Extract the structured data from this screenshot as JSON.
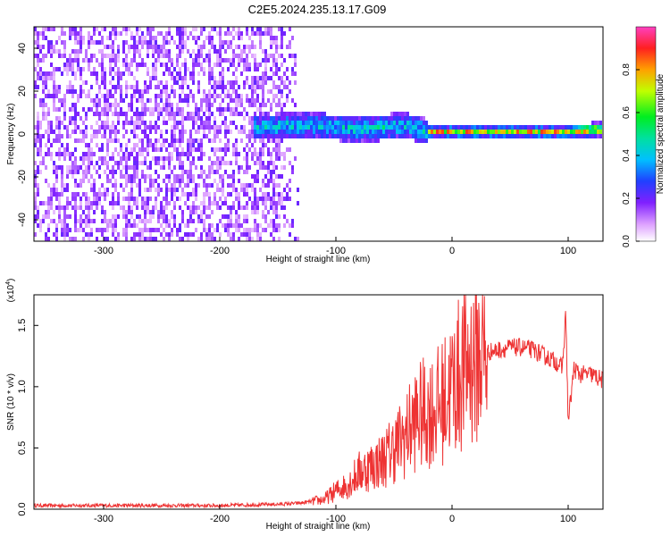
{
  "title": "C2E5.2024.235.13.17.G09",
  "chart_data": [
    {
      "type": "heatmap",
      "title": "C2E5.2024.235.13.17.G09",
      "xlabel": "Height of straight line (km)",
      "ylabel": "Frequency (Hz)",
      "xlim": [
        -360,
        130
      ],
      "ylim": [
        -50,
        50
      ],
      "xticks": [
        -300,
        -200,
        -100,
        0,
        100
      ],
      "yticks": [
        -40,
        -20,
        0,
        20,
        40
      ],
      "colorbar": {
        "label": "Normalized spectral amplitude",
        "range": [
          0.0,
          1.0
        ],
        "ticks": [
          0.0,
          0.2,
          0.4,
          0.6,
          0.8
        ]
      },
      "noise_region_x": [
        -360,
        -130
      ],
      "signal_center_hz": [
        {
          "x": -160,
          "y": 3
        },
        {
          "x": -140,
          "y": 4
        },
        {
          "x": -120,
          "y": 4
        },
        {
          "x": -100,
          "y": 3
        },
        {
          "x": -80,
          "y": 2
        },
        {
          "x": -60,
          "y": 3
        },
        {
          "x": -40,
          "y": 4
        },
        {
          "x": -20,
          "y": 1
        },
        {
          "x": 0,
          "y": 1
        },
        {
          "x": 50,
          "y": 1
        },
        {
          "x": 100,
          "y": 1
        },
        {
          "x": 130,
          "y": 2
        }
      ]
    },
    {
      "type": "line",
      "xlabel": "Height of straight line (km)",
      "ylabel": "SNR (10 * v/v)",
      "yscale_label": "(x10",
      "yscale_exp": "4",
      "yscale_close": ")",
      "xlim": [
        -360,
        130
      ],
      "ylim": [
        0,
        17500
      ],
      "xticks": [
        -300,
        -200,
        -100,
        0,
        100
      ],
      "yticks": [
        0,
        5000,
        10000,
        15000
      ],
      "ytick_labels": [
        "0.0",
        "0.5",
        "1.0",
        "1.5"
      ],
      "series_color": "#ee3333",
      "series": [
        {
          "x": [
            -360,
            -300,
            -250,
            -200,
            -150,
            -130,
            -110,
            -100,
            -90,
            -80,
            -70,
            -60,
            -50,
            -40,
            -30,
            -20,
            -10,
            0,
            10,
            20,
            30,
            40,
            50,
            60,
            70,
            80,
            90,
            95,
            98,
            100,
            105,
            110,
            120,
            130
          ],
          "y": [
            300,
            300,
            300,
            300,
            400,
            500,
            800,
            1500,
            2000,
            3000,
            3500,
            4000,
            5000,
            6000,
            7500,
            8000,
            8500,
            10000,
            11500,
            12500,
            12800,
            13000,
            13200,
            13200,
            13000,
            12500,
            12000,
            11500,
            16000,
            7000,
            11500,
            11000,
            11000,
            10500
          ]
        }
      ]
    }
  ]
}
